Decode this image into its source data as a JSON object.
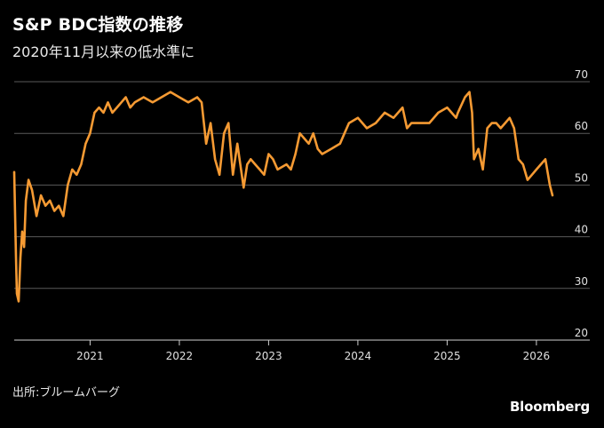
{
  "header": {
    "title": "S&P BDC指数の推移",
    "subtitle": "2020年11月以来の低水準に"
  },
  "footer": {
    "source": "出所:ブルームバーグ",
    "brand": "Bloomberg"
  },
  "chart_data": {
    "type": "line",
    "title": "S&P BDC指数の推移",
    "subtitle": "2020年11月以来の低水準に",
    "xlabel": "",
    "ylabel": "",
    "xlim": [
      2020.15,
      2026.2
    ],
    "ylim": [
      20,
      70
    ],
    "y_ticks": [
      20,
      30,
      40,
      50,
      60,
      70
    ],
    "x_ticks": [
      2021,
      2022,
      2023,
      2024,
      2025,
      2026
    ],
    "x_tick_labels": [
      "2021",
      "2022",
      "2023",
      "2024",
      "2025",
      "2026"
    ],
    "grid": "horizontal",
    "y_axis_side": "right",
    "line_color": "#f59a33",
    "series": [
      {
        "x": [
          2020.15,
          2020.17,
          2020.18,
          2020.2,
          2020.22,
          2020.24,
          2020.26,
          2020.28,
          2020.31,
          2020.35,
          2020.4,
          2020.45,
          2020.5,
          2020.55,
          2020.6,
          2020.65,
          2020.7,
          2020.75,
          2020.8,
          2020.85,
          2020.9,
          2020.95,
          2021.0,
          2021.05,
          2021.1,
          2021.15,
          2021.2,
          2021.25,
          2021.3,
          2021.35,
          2021.4,
          2021.45,
          2021.5,
          2021.6,
          2021.7,
          2021.8,
          2021.9,
          2022.0,
          2022.1,
          2022.2,
          2022.25,
          2022.3,
          2022.35,
          2022.4,
          2022.45,
          2022.5,
          2022.55,
          2022.6,
          2022.65,
          2022.72,
          2022.76,
          2022.8,
          2022.85,
          2022.9,
          2022.95,
          2023.0,
          2023.05,
          2023.1,
          2023.2,
          2023.25,
          2023.3,
          2023.35,
          2023.4,
          2023.45,
          2023.5,
          2023.55,
          2023.6,
          2023.7,
          2023.8,
          2023.85,
          2023.9,
          2024.0,
          2024.1,
          2024.2,
          2024.3,
          2024.4,
          2024.5,
          2024.55,
          2024.6,
          2024.7,
          2024.8,
          2024.9,
          2025.0,
          2025.1,
          2025.12,
          2025.2,
          2025.25,
          2025.28,
          2025.3,
          2025.35,
          2025.4,
          2025.45,
          2025.5,
          2025.55,
          2025.6,
          2025.65,
          2025.7,
          2025.75,
          2025.8,
          2025.85,
          2025.9,
          2025.95,
          2026.0,
          2026.05,
          2026.1,
          2026.15,
          2026.18
        ],
        "y": [
          52.5,
          36,
          29,
          27.5,
          36,
          41,
          38,
          47,
          51,
          49,
          44,
          48,
          46,
          47,
          45,
          46,
          44,
          50,
          53,
          52,
          54,
          58,
          60,
          64,
          65,
          64,
          66,
          64,
          65,
          66,
          67,
          65,
          66,
          67,
          66,
          67,
          68,
          67,
          66,
          67,
          66,
          58,
          62,
          55,
          52,
          60,
          62,
          52,
          58,
          49.5,
          54,
          55,
          54,
          53,
          52,
          56,
          55,
          53,
          54,
          53,
          56,
          60,
          59,
          58,
          60,
          57,
          56,
          57,
          58,
          60,
          62,
          63,
          61,
          62,
          64,
          63,
          65,
          61,
          62,
          62,
          62,
          64,
          65,
          63,
          64,
          67,
          68,
          64,
          55,
          57,
          53,
          61,
          62,
          62,
          61,
          62,
          63,
          61,
          55,
          54,
          51,
          52,
          53,
          54,
          55,
          50,
          48
        ]
      }
    ]
  }
}
